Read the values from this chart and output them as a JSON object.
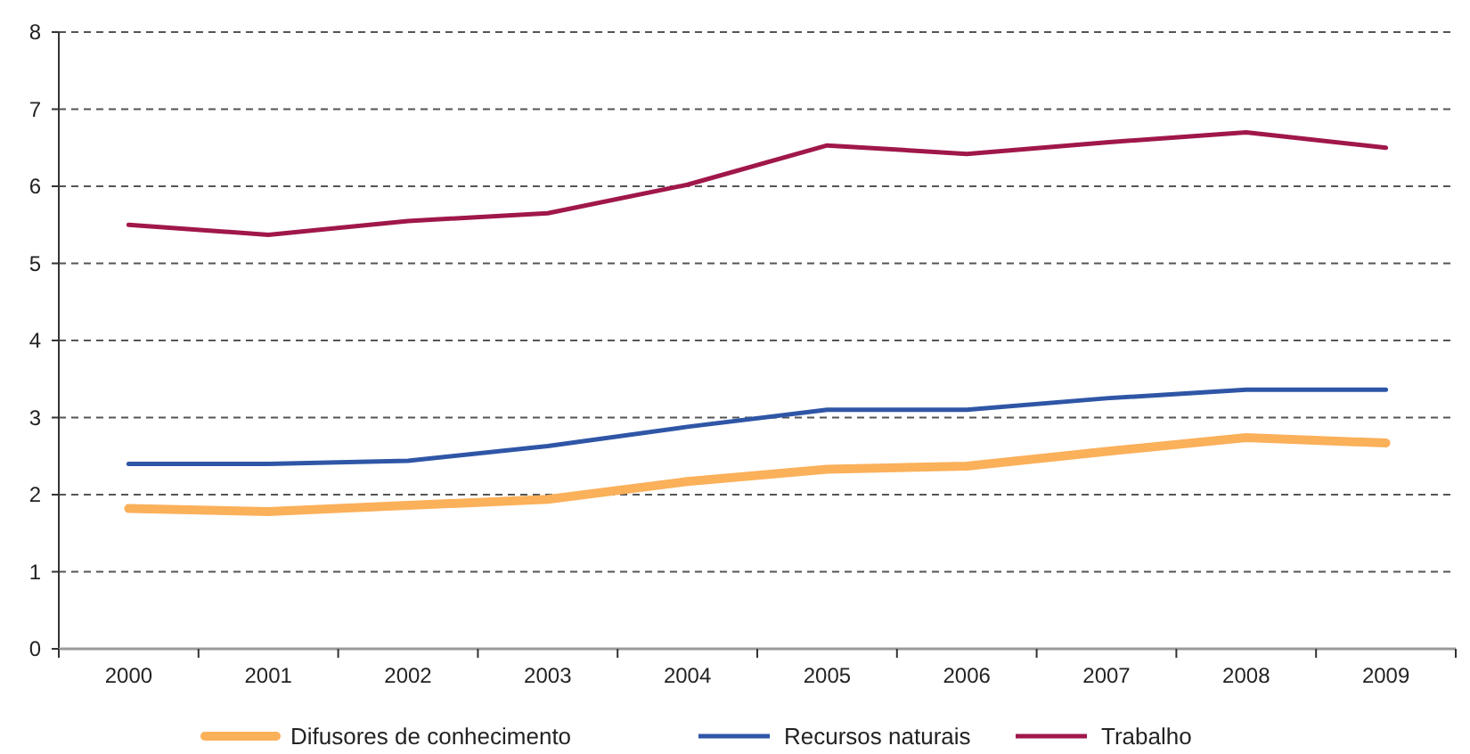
{
  "chart_data": {
    "type": "line",
    "categories": [
      "2000",
      "2001",
      "2002",
      "2003",
      "2004",
      "2005",
      "2006",
      "2007",
      "2008",
      "2009"
    ],
    "series": [
      {
        "name": "Difusores de conhecimento",
        "color": "#fbb05a",
        "values": [
          1.82,
          1.78,
          1.86,
          1.94,
          2.17,
          2.33,
          2.37,
          2.56,
          2.74,
          2.67
        ]
      },
      {
        "name": "Recursos naturais",
        "color": "#2f56a6",
        "values": [
          2.4,
          2.4,
          2.44,
          2.63,
          2.88,
          3.1,
          3.1,
          3.25,
          3.36,
          3.36
        ]
      },
      {
        "name": "Trabalho",
        "color": "#a0174a",
        "values": [
          5.5,
          5.37,
          5.55,
          5.65,
          6.02,
          6.53,
          6.42,
          6.57,
          6.7,
          6.5
        ]
      }
    ],
    "ylim": [
      0,
      8
    ],
    "yticks": [
      0,
      1,
      2,
      3,
      4,
      5,
      6,
      7,
      8
    ],
    "grid": "y",
    "legend": "bottom",
    "marker": "none",
    "line_style": "solid"
  }
}
